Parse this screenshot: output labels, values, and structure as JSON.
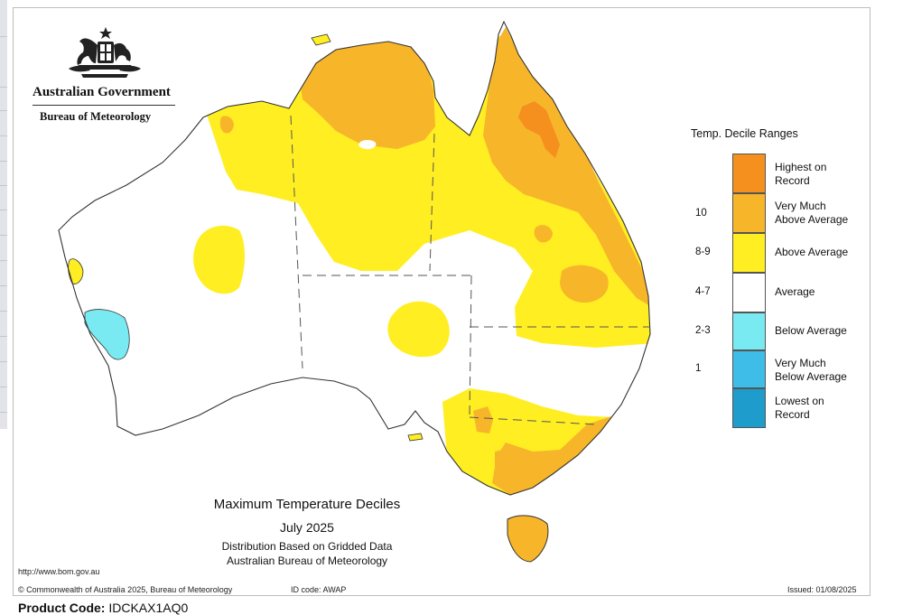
{
  "header": {
    "gov_title": "Australian Government",
    "gov_subtitle": "Bureau of Meteorology"
  },
  "legend": {
    "title": "Temp. Decile Ranges",
    "items": [
      {
        "label_lines": [
          "Highest on",
          "Record"
        ],
        "code": "",
        "color": "#f5901e"
      },
      {
        "label_lines": [
          "Very Much",
          "Above Average"
        ],
        "code": "10",
        "color": "#f7b52a"
      },
      {
        "label_lines": [
          "Above Average"
        ],
        "code": "8-9",
        "color": "#ffee22"
      },
      {
        "label_lines": [
          "Average"
        ],
        "code": "4-7",
        "color": "#ffffff"
      },
      {
        "label_lines": [
          "Below Average"
        ],
        "code": "2-3",
        "color": "#7aeaf2"
      },
      {
        "label_lines": [
          "Very Much",
          "Below Average"
        ],
        "code": "1",
        "color": "#3dbde8"
      },
      {
        "label_lines": [
          "Lowest on",
          "Record"
        ],
        "code": "",
        "color": "#1e9ccb"
      }
    ]
  },
  "map_title": {
    "line1": "Maximum Temperature Deciles",
    "line2": "July 2025",
    "line3": "Distribution Based on Gridded Data",
    "line4": "Australian Bureau of Meteorology"
  },
  "footer": {
    "url": "http://www.bom.gov.au",
    "copyright": "© Commonwealth of Australia 2025, Bureau of Meteorology",
    "id_code": "ID code: AWAP",
    "issued": "Issued: 01/08/2025"
  },
  "product": {
    "label": "Product Code:",
    "value": "IDCKAX1AQ0"
  },
  "colors": {
    "very_much_above": "#f7b52a",
    "above": "#ffee22",
    "highest": "#f5901e",
    "below": "#7aeaf2",
    "coast": "#333333"
  }
}
